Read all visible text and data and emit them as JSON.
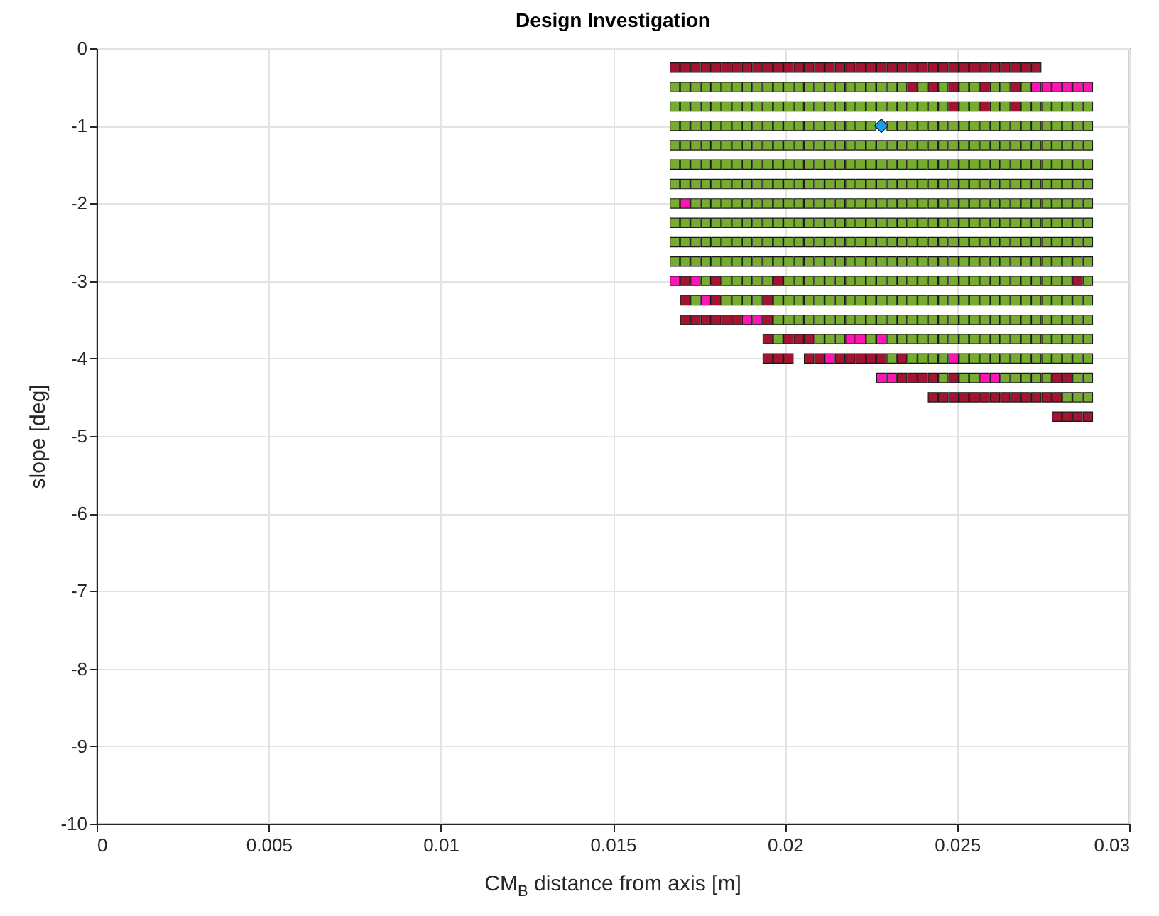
{
  "chart_data": {
    "type": "scatter",
    "title": "Design Investigation",
    "xlabel": "CM$_{B}$ distance from axis [m]",
    "ylabel": "slope [deg]",
    "xlim": [
      0,
      0.03
    ],
    "xticks": [
      0,
      0.005,
      0.01,
      0.015,
      0.02,
      0.025,
      0.03
    ],
    "ylim": [
      -10,
      0
    ],
    "yticks": [
      -10,
      -9,
      -8,
      -7,
      -6,
      -5,
      -4,
      -3,
      -2,
      -1,
      0
    ],
    "grid": true,
    "marker": "square",
    "series": [
      {
        "color": "#77ac30",
        "x": [
          0.0168,
          0.0171,
          0.0174,
          0.0177,
          0.018,
          0.0183,
          0.0186,
          0.0189,
          0.0192,
          0.0195,
          0.0198,
          0.0201,
          0.0204,
          0.0207,
          0.021,
          0.0213,
          0.0216,
          0.0219,
          0.0222,
          0.0225,
          0.0228,
          0.0231,
          0.0234,
          0.024,
          0.0246,
          0.0252,
          0.0255,
          0.0261,
          0.0264,
          0.027,
          0.0168,
          0.0171,
          0.0174,
          0.0177,
          0.018,
          0.0183,
          0.0186,
          0.0189,
          0.0192,
          0.0195,
          0.0198,
          0.0201,
          0.0204,
          0.0207,
          0.021,
          0.0213,
          0.0216,
          0.0219,
          0.0222,
          0.0225,
          0.0228,
          0.0231,
          0.0234,
          0.0237,
          0.024,
          0.0243,
          0.0246,
          0.0252,
          0.0255,
          0.0261,
          0.0264,
          0.027,
          0.0273,
          0.0276,
          0.0279,
          0.0282,
          0.0285,
          0.0288,
          0.0168,
          0.0171,
          0.0174,
          0.0177,
          0.018,
          0.0183,
          0.0186,
          0.0189,
          0.0192,
          0.0195,
          0.0198,
          0.0201,
          0.0204,
          0.0207,
          0.021,
          0.0213,
          0.0216,
          0.0219,
          0.0222,
          0.0225,
          0.0231,
          0.0234,
          0.0237,
          0.024,
          0.0243,
          0.0246,
          0.0249,
          0.0252,
          0.0255,
          0.0258,
          0.0261,
          0.0264,
          0.0267,
          0.027,
          0.0273,
          0.0276,
          0.0279,
          0.0282,
          0.0285,
          0.0288,
          0.0168,
          0.0171,
          0.0174,
          0.0177,
          0.018,
          0.0183,
          0.0186,
          0.0189,
          0.0192,
          0.0195,
          0.0198,
          0.0201,
          0.0204,
          0.0207,
          0.021,
          0.0213,
          0.0216,
          0.0219,
          0.0222,
          0.0225,
          0.0228,
          0.0231,
          0.0234,
          0.0237,
          0.024,
          0.0243,
          0.0246,
          0.0249,
          0.0252,
          0.0255,
          0.0258,
          0.0261,
          0.0264,
          0.0267,
          0.027,
          0.0273,
          0.0276,
          0.0279,
          0.0282,
          0.0285,
          0.0288,
          0.0168,
          0.0171,
          0.0174,
          0.0177,
          0.018,
          0.0183,
          0.0186,
          0.0189,
          0.0192,
          0.0195,
          0.0198,
          0.0201,
          0.0204,
          0.0207,
          0.021,
          0.0213,
          0.0216,
          0.0219,
          0.0222,
          0.0225,
          0.0228,
          0.0231,
          0.0234,
          0.0237,
          0.024,
          0.0243,
          0.0246,
          0.0249,
          0.0252,
          0.0255,
          0.0258,
          0.0261,
          0.0264,
          0.0267,
          0.027,
          0.0273,
          0.0276,
          0.0279,
          0.0282,
          0.0285,
          0.0288,
          0.0168,
          0.0171,
          0.0174,
          0.0177,
          0.018,
          0.0183,
          0.0186,
          0.0189,
          0.0192,
          0.0195,
          0.0198,
          0.0201,
          0.0204,
          0.0207,
          0.021,
          0.0213,
          0.0216,
          0.0219,
          0.0222,
          0.0225,
          0.0228,
          0.0231,
          0.0234,
          0.0237,
          0.024,
          0.0243,
          0.0246,
          0.0249,
          0.0252,
          0.0255,
          0.0258,
          0.0261,
          0.0264,
          0.0267,
          0.027,
          0.0273,
          0.0276,
          0.0279,
          0.0282,
          0.0285,
          0.0288,
          0.0168,
          0.0174,
          0.0177,
          0.018,
          0.0183,
          0.0186,
          0.0189,
          0.0192,
          0.0195,
          0.0198,
          0.0201,
          0.0204,
          0.0207,
          0.021,
          0.0213,
          0.0216,
          0.0219,
          0.0222,
          0.0225,
          0.0228,
          0.0231,
          0.0234,
          0.0237,
          0.024,
          0.0243,
          0.0246,
          0.0249,
          0.0252,
          0.0255,
          0.0258,
          0.0261,
          0.0264,
          0.0267,
          0.027,
          0.0273,
          0.0276,
          0.0279,
          0.0282,
          0.0285,
          0.0288,
          0.0168,
          0.0171,
          0.0174,
          0.0177,
          0.018,
          0.0183,
          0.0186,
          0.0189,
          0.0192,
          0.0195,
          0.0198,
          0.0201,
          0.0204,
          0.0207,
          0.021,
          0.0213,
          0.0216,
          0.0219,
          0.0222,
          0.0225,
          0.0228,
          0.0231,
          0.0234,
          0.0237,
          0.024,
          0.0243,
          0.0246,
          0.0249,
          0.0252,
          0.0255,
          0.0258,
          0.0261,
          0.0264,
          0.0267,
          0.027,
          0.0273,
          0.0276,
          0.0279,
          0.0282,
          0.0285,
          0.0288,
          0.0168,
          0.0171,
          0.0174,
          0.0177,
          0.018,
          0.0183,
          0.0186,
          0.0189,
          0.0192,
          0.0195,
          0.0198,
          0.0201,
          0.0204,
          0.0207,
          0.021,
          0.0213,
          0.0216,
          0.0219,
          0.0222,
          0.0225,
          0.0228,
          0.0231,
          0.0234,
          0.0237,
          0.024,
          0.0243,
          0.0246,
          0.0249,
          0.0252,
          0.0255,
          0.0258,
          0.0261,
          0.0264,
          0.0267,
          0.027,
          0.0273,
          0.0276,
          0.0279,
          0.0282,
          0.0285,
          0.0288,
          0.0168,
          0.0171,
          0.0174,
          0.0177,
          0.018,
          0.0183,
          0.0186,
          0.0189,
          0.0192,
          0.0195,
          0.0198,
          0.0201,
          0.0204,
          0.0207,
          0.021,
          0.0213,
          0.0216,
          0.0219,
          0.0222,
          0.0225,
          0.0228,
          0.0231,
          0.0234,
          0.0237,
          0.024,
          0.0243,
          0.0246,
          0.0249,
          0.0252,
          0.0255,
          0.0258,
          0.0261,
          0.0264,
          0.0267,
          0.027,
          0.0273,
          0.0276,
          0.0279,
          0.0282,
          0.0285,
          0.0288,
          0.0177,
          0.0183,
          0.0186,
          0.0189,
          0.0192,
          0.0195,
          0.0201,
          0.0204,
          0.0207,
          0.021,
          0.0213,
          0.0216,
          0.0219,
          0.0222,
          0.0225,
          0.0228,
          0.0231,
          0.0234,
          0.0237,
          0.024,
          0.0243,
          0.0246,
          0.0249,
          0.0252,
          0.0255,
          0.0258,
          0.0261,
          0.0264,
          0.0267,
          0.027,
          0.0273,
          0.0276,
          0.0279,
          0.0282,
          0.0288,
          0.0174,
          0.0183,
          0.0186,
          0.0189,
          0.0192,
          0.0198,
          0.0201,
          0.0204,
          0.0207,
          0.021,
          0.0213,
          0.0216,
          0.0219,
          0.0222,
          0.0225,
          0.0228,
          0.0231,
          0.0234,
          0.0237,
          0.024,
          0.0243,
          0.0246,
          0.0249,
          0.0252,
          0.0255,
          0.0258,
          0.0261,
          0.0264,
          0.0267,
          0.027,
          0.0273,
          0.0276,
          0.0279,
          0.0282,
          0.0285,
          0.0288,
          0.0198,
          0.0201,
          0.0204,
          0.0207,
          0.021,
          0.0213,
          0.0216,
          0.0219,
          0.0222,
          0.0225,
          0.0228,
          0.0231,
          0.0234,
          0.0237,
          0.024,
          0.0243,
          0.0246,
          0.0249,
          0.0252,
          0.0255,
          0.0258,
          0.0261,
          0.0264,
          0.0267,
          0.027,
          0.0273,
          0.0276,
          0.0279,
          0.0282,
          0.0285,
          0.0288,
          0.0198,
          0.021,
          0.0213,
          0.0216,
          0.0225,
          0.0231,
          0.0234,
          0.0237,
          0.024,
          0.0243,
          0.0246,
          0.0249,
          0.0252,
          0.0255,
          0.0258,
          0.0261,
          0.0264,
          0.0267,
          0.027,
          0.0273,
          0.0276,
          0.0279,
          0.0282,
          0.0285,
          0.0288,
          0.0231,
          0.0237,
          0.024,
          0.0243,
          0.0246,
          0.0252,
          0.0255,
          0.0258,
          0.0261,
          0.0264,
          0.0267,
          0.027,
          0.0273,
          0.0276,
          0.0279,
          0.0282,
          0.0285,
          0.0288,
          0.0246,
          0.0252,
          0.0255,
          0.0264,
          0.0267,
          0.027,
          0.0273,
          0.0276,
          0.0285,
          0.0288,
          0.0282,
          0.0285,
          0.0288
        ],
        "values": [
          -0.5,
          -0.5,
          -0.5,
          -0.5,
          -0.5,
          -0.5,
          -0.5,
          -0.5,
          -0.5,
          -0.5,
          -0.5,
          -0.5,
          -0.5,
          -0.5,
          -0.5,
          -0.5,
          -0.5,
          -0.5,
          -0.5,
          -0.5,
          -0.5,
          -0.5,
          -0.5,
          -0.5,
          -0.5,
          -0.5,
          -0.5,
          -0.5,
          -0.5,
          -0.5,
          -0.75,
          -0.75,
          -0.75,
          -0.75,
          -0.75,
          -0.75,
          -0.75,
          -0.75,
          -0.75,
          -0.75,
          -0.75,
          -0.75,
          -0.75,
          -0.75,
          -0.75,
          -0.75,
          -0.75,
          -0.75,
          -0.75,
          -0.75,
          -0.75,
          -0.75,
          -0.75,
          -0.75,
          -0.75,
          -0.75,
          -0.75,
          -0.75,
          -0.75,
          -0.75,
          -0.75,
          -0.75,
          -0.75,
          -0.75,
          -0.75,
          -0.75,
          -0.75,
          -0.75,
          -1,
          -1,
          -1,
          -1,
          -1,
          -1,
          -1,
          -1,
          -1,
          -1,
          -1,
          -1,
          -1,
          -1,
          -1,
          -1,
          -1,
          -1,
          -1,
          -1,
          -1,
          -1,
          -1,
          -1,
          -1,
          -1,
          -1,
          -1,
          -1,
          -1,
          -1,
          -1,
          -1,
          -1,
          -1,
          -1,
          -1,
          -1,
          -1,
          -1,
          -1.25,
          -1.25,
          -1.25,
          -1.25,
          -1.25,
          -1.25,
          -1.25,
          -1.25,
          -1.25,
          -1.25,
          -1.25,
          -1.25,
          -1.25,
          -1.25,
          -1.25,
          -1.25,
          -1.25,
          -1.25,
          -1.25,
          -1.25,
          -1.25,
          -1.25,
          -1.25,
          -1.25,
          -1.25,
          -1.25,
          -1.25,
          -1.25,
          -1.25,
          -1.25,
          -1.25,
          -1.25,
          -1.25,
          -1.25,
          -1.25,
          -1.25,
          -1.25,
          -1.25,
          -1.25,
          -1.25,
          -1.25,
          -1.5,
          -1.5,
          -1.5,
          -1.5,
          -1.5,
          -1.5,
          -1.5,
          -1.5,
          -1.5,
          -1.5,
          -1.5,
          -1.5,
          -1.5,
          -1.5,
          -1.5,
          -1.5,
          -1.5,
          -1.5,
          -1.5,
          -1.5,
          -1.5,
          -1.5,
          -1.5,
          -1.5,
          -1.5,
          -1.5,
          -1.5,
          -1.5,
          -1.5,
          -1.5,
          -1.5,
          -1.5,
          -1.5,
          -1.5,
          -1.5,
          -1.5,
          -1.5,
          -1.5,
          -1.5,
          -1.5,
          -1.5,
          -1.75,
          -1.75,
          -1.75,
          -1.75,
          -1.75,
          -1.75,
          -1.75,
          -1.75,
          -1.75,
          -1.75,
          -1.75,
          -1.75,
          -1.75,
          -1.75,
          -1.75,
          -1.75,
          -1.75,
          -1.75,
          -1.75,
          -1.75,
          -1.75,
          -1.75,
          -1.75,
          -1.75,
          -1.75,
          -1.75,
          -1.75,
          -1.75,
          -1.75,
          -1.75,
          -1.75,
          -1.75,
          -1.75,
          -1.75,
          -1.75,
          -1.75,
          -1.75,
          -1.75,
          -1.75,
          -1.75,
          -1.75,
          -2,
          -2,
          -2,
          -2,
          -2,
          -2,
          -2,
          -2,
          -2,
          -2,
          -2,
          -2,
          -2,
          -2,
          -2,
          -2,
          -2,
          -2,
          -2,
          -2,
          -2,
          -2,
          -2,
          -2,
          -2,
          -2,
          -2,
          -2,
          -2,
          -2,
          -2,
          -2,
          -2,
          -2,
          -2,
          -2,
          -2,
          -2,
          -2,
          -2,
          -2.25,
          -2.25,
          -2.25,
          -2.25,
          -2.25,
          -2.25,
          -2.25,
          -2.25,
          -2.25,
          -2.25,
          -2.25,
          -2.25,
          -2.25,
          -2.25,
          -2.25,
          -2.25,
          -2.25,
          -2.25,
          -2.25,
          -2.25,
          -2.25,
          -2.25,
          -2.25,
          -2.25,
          -2.25,
          -2.25,
          -2.25,
          -2.25,
          -2.25,
          -2.25,
          -2.25,
          -2.25,
          -2.25,
          -2.25,
          -2.25,
          -2.25,
          -2.25,
          -2.25,
          -2.25,
          -2.25,
          -2.25,
          -2.5,
          -2.5,
          -2.5,
          -2.5,
          -2.5,
          -2.5,
          -2.5,
          -2.5,
          -2.5,
          -2.5,
          -2.5,
          -2.5,
          -2.5,
          -2.5,
          -2.5,
          -2.5,
          -2.5,
          -2.5,
          -2.5,
          -2.5,
          -2.5,
          -2.5,
          -2.5,
          -2.5,
          -2.5,
          -2.5,
          -2.5,
          -2.5,
          -2.5,
          -2.5,
          -2.5,
          -2.5,
          -2.5,
          -2.5,
          -2.5,
          -2.5,
          -2.5,
          -2.5,
          -2.5,
          -2.5,
          -2.5,
          -2.75,
          -2.75,
          -2.75,
          -2.75,
          -2.75,
          -2.75,
          -2.75,
          -2.75,
          -2.75,
          -2.75,
          -2.75,
          -2.75,
          -2.75,
          -2.75,
          -2.75,
          -2.75,
          -2.75,
          -2.75,
          -2.75,
          -2.75,
          -2.75,
          -2.75,
          -2.75,
          -2.75,
          -2.75,
          -2.75,
          -2.75,
          -2.75,
          -2.75,
          -2.75,
          -2.75,
          -2.75,
          -2.75,
          -2.75,
          -2.75,
          -2.75,
          -2.75,
          -2.75,
          -2.75,
          -2.75,
          -2.75,
          -3,
          -3,
          -3,
          -3,
          -3,
          -3,
          -3,
          -3,
          -3,
          -3,
          -3,
          -3,
          -3,
          -3,
          -3,
          -3,
          -3,
          -3,
          -3,
          -3,
          -3,
          -3,
          -3,
          -3,
          -3,
          -3,
          -3,
          -3,
          -3,
          -3,
          -3,
          -3,
          -3,
          -3,
          -3,
          -3.25,
          -3.25,
          -3.25,
          -3.25,
          -3.25,
          -3.25,
          -3.25,
          -3.25,
          -3.25,
          -3.25,
          -3.25,
          -3.25,
          -3.25,
          -3.25,
          -3.25,
          -3.25,
          -3.25,
          -3.25,
          -3.25,
          -3.25,
          -3.25,
          -3.25,
          -3.25,
          -3.25,
          -3.25,
          -3.25,
          -3.25,
          -3.25,
          -3.25,
          -3.25,
          -3.25,
          -3.25,
          -3.25,
          -3.25,
          -3.25,
          -3.25,
          -3.5,
          -3.5,
          -3.5,
          -3.5,
          -3.5,
          -3.5,
          -3.5,
          -3.5,
          -3.5,
          -3.5,
          -3.5,
          -3.5,
          -3.5,
          -3.5,
          -3.5,
          -3.5,
          -3.5,
          -3.5,
          -3.5,
          -3.5,
          -3.5,
          -3.5,
          -3.5,
          -3.5,
          -3.5,
          -3.5,
          -3.5,
          -3.5,
          -3.5,
          -3.5,
          -3.5,
          -3.75,
          -3.75,
          -3.75,
          -3.75,
          -3.75,
          -3.75,
          -3.75,
          -3.75,
          -3.75,
          -3.75,
          -3.75,
          -3.75,
          -3.75,
          -3.75,
          -3.75,
          -3.75,
          -3.75,
          -3.75,
          -3.75,
          -3.75,
          -3.75,
          -3.75,
          -3.75,
          -3.75,
          -3.75,
          -4,
          -4,
          -4,
          -4,
          -4,
          -4,
          -4,
          -4,
          -4,
          -4,
          -4,
          -4,
          -4,
          -4,
          -4,
          -4,
          -4,
          -4,
          -4.25,
          -4.25,
          -4.25,
          -4.25,
          -4.25,
          -4.25,
          -4.25,
          -4.25,
          -4.25,
          -4.25,
          -4.5,
          -4.5,
          -4.5
        ]
      },
      {
        "color": "#a2142f",
        "x": [
          0.0168,
          0.0171,
          0.0174,
          0.0177,
          0.018,
          0.0183,
          0.0186,
          0.0189,
          0.0192,
          0.0195,
          0.0198,
          0.0201,
          0.0204,
          0.0207,
          0.021,
          0.0213,
          0.0216,
          0.0219,
          0.0222,
          0.0225,
          0.0228,
          0.0231,
          0.0234,
          0.0237,
          0.024,
          0.0243,
          0.0246,
          0.0249,
          0.0252,
          0.0255,
          0.0258,
          0.0261,
          0.0264,
          0.0267,
          0.027,
          0.0273,
          0.0237,
          0.0243,
          0.0249,
          0.0258,
          0.0267,
          0.0249,
          0.0258,
          0.0267,
          0.0171,
          0.018,
          0.0198,
          0.0285,
          0.0171,
          0.018,
          0.0195,
          0.0171,
          0.0174,
          0.0177,
          0.018,
          0.0183,
          0.0186,
          0.0195,
          0.0195,
          0.0201,
          0.0204,
          0.0207,
          0.0195,
          0.0198,
          0.0201,
          0.0207,
          0.021,
          0.0216,
          0.0219,
          0.0222,
          0.0225,
          0.0228,
          0.0234,
          0.0234,
          0.0237,
          0.024,
          0.0243,
          0.0249,
          0.0279,
          0.0282,
          0.0243,
          0.0246,
          0.0249,
          0.0252,
          0.0255,
          0.0258,
          0.0261,
          0.0264,
          0.0267,
          0.027,
          0.0273,
          0.0276,
          0.0279,
          0.0279,
          0.0282,
          0.0285,
          0.0288
        ],
        "values": [
          -0.25,
          -0.25,
          -0.25,
          -0.25,
          -0.25,
          -0.25,
          -0.25,
          -0.25,
          -0.25,
          -0.25,
          -0.25,
          -0.25,
          -0.25,
          -0.25,
          -0.25,
          -0.25,
          -0.25,
          -0.25,
          -0.25,
          -0.25,
          -0.25,
          -0.25,
          -0.25,
          -0.25,
          -0.25,
          -0.25,
          -0.25,
          -0.25,
          -0.25,
          -0.25,
          -0.25,
          -0.25,
          -0.25,
          -0.25,
          -0.25,
          -0.25,
          -0.5,
          -0.5,
          -0.5,
          -0.5,
          -0.5,
          -0.75,
          -0.75,
          -0.75,
          -3,
          -3,
          -3,
          -3,
          -3.25,
          -3.25,
          -3.25,
          -3.5,
          -3.5,
          -3.5,
          -3.5,
          -3.5,
          -3.5,
          -3.5,
          -3.75,
          -3.75,
          -3.75,
          -3.75,
          -4,
          -4,
          -4,
          -4,
          -4,
          -4,
          -4,
          -4,
          -4,
          -4,
          -4,
          -4.25,
          -4.25,
          -4.25,
          -4.25,
          -4.25,
          -4.25,
          -4.25,
          -4.5,
          -4.5,
          -4.5,
          -4.5,
          -4.5,
          -4.5,
          -4.5,
          -4.5,
          -4.5,
          -4.5,
          -4.5,
          -4.5,
          -4.5,
          -4.75,
          -4.75,
          -4.75,
          -4.75
        ]
      },
      {
        "color": "#ff14b4",
        "x": [
          0.0273,
          0.0276,
          0.0279,
          0.0282,
          0.0285,
          0.0288,
          0.0171,
          0.0168,
          0.0174,
          0.0177,
          0.0189,
          0.0192,
          0.0219,
          0.0222,
          0.0228,
          0.0213,
          0.0249,
          0.0228,
          0.0231,
          0.0258,
          0.0261
        ],
        "values": [
          -0.5,
          -0.5,
          -0.5,
          -0.5,
          -0.5,
          -0.5,
          -2,
          -3,
          -3,
          -3.25,
          -3.5,
          -3.5,
          -3.75,
          -3.75,
          -3.75,
          -4,
          -4,
          -4.25,
          -4.25,
          -4.25,
          -4.25
        ]
      },
      {
        "color": "#1a9cf0",
        "marker": "diamond",
        "x": [
          0.0228
        ],
        "values": [
          -1
        ]
      }
    ]
  }
}
